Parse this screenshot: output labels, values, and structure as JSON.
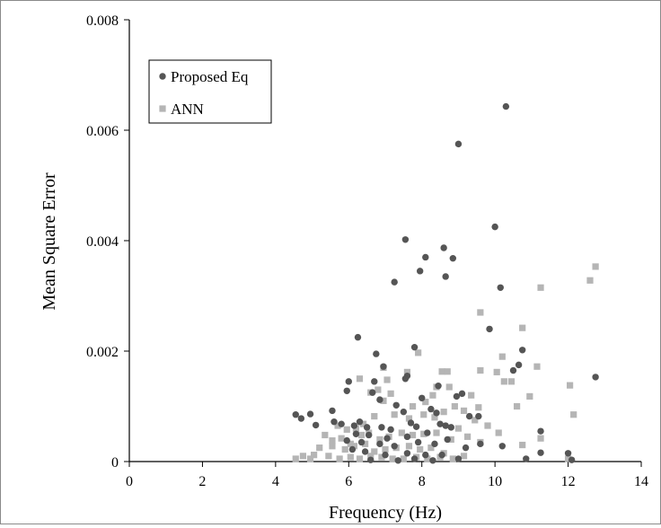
{
  "chart_data": {
    "type": "scatter",
    "xlabel": "Frequency (Hz)",
    "ylabel": "Mean Square Error",
    "xlim": [
      0,
      14
    ],
    "ylim": [
      0,
      0.008
    ],
    "xticks": [
      0,
      2,
      4,
      6,
      8,
      10,
      12,
      14
    ],
    "yticks": [
      0,
      0.002,
      0.004,
      0.006,
      0.008
    ],
    "xtick_labels": [
      "0",
      "2",
      "4",
      "6",
      "8",
      "10",
      "12",
      "14"
    ],
    "ytick_labels": [
      "0",
      "0.002",
      "0.004",
      "0.006",
      "0.008"
    ],
    "grid": false,
    "legend": "top-left",
    "series": [
      {
        "name": "Proposed Eq",
        "color": "#555555",
        "marker": "circle",
        "points": [
          [
            10.3,
            0.00643
          ],
          [
            9.0,
            0.00575
          ],
          [
            10.0,
            0.00425
          ],
          [
            7.55,
            0.00402
          ],
          [
            8.6,
            0.00387
          ],
          [
            8.1,
            0.0037
          ],
          [
            8.85,
            0.00368
          ],
          [
            7.95,
            0.00345
          ],
          [
            8.65,
            0.00335
          ],
          [
            7.25,
            0.00325
          ],
          [
            10.15,
            0.00315
          ],
          [
            9.85,
            0.0024
          ],
          [
            6.25,
            0.00225
          ],
          [
            10.75,
            0.00202
          ],
          [
            7.8,
            0.00207
          ],
          [
            6.75,
            0.00195
          ],
          [
            6.95,
            0.00172
          ],
          [
            10.65,
            0.00175
          ],
          [
            10.5,
            0.00165
          ],
          [
            7.55,
            0.0015
          ],
          [
            6.0,
            0.00145
          ],
          [
            12.75,
            0.00153
          ],
          [
            6.7,
            0.00145
          ],
          [
            7.6,
            0.00155
          ],
          [
            8.45,
            0.00137
          ],
          [
            5.95,
            0.00128
          ],
          [
            6.65,
            0.00125
          ],
          [
            9.1,
            0.00123
          ],
          [
            8.95,
            0.00118
          ],
          [
            8.0,
            0.00115
          ],
          [
            6.85,
            0.00112
          ],
          [
            7.3,
            0.00102
          ],
          [
            8.25,
            0.00095
          ],
          [
            8.4,
            0.00088
          ],
          [
            7.5,
            0.0009
          ],
          [
            4.55,
            0.00085
          ],
          [
            4.7,
            0.00078
          ],
          [
            4.95,
            0.00086
          ],
          [
            5.1,
            0.00066
          ],
          [
            5.55,
            0.00092
          ],
          [
            5.6,
            0.00072
          ],
          [
            5.8,
            0.00068
          ],
          [
            6.15,
            0.00065
          ],
          [
            6.3,
            0.00072
          ],
          [
            6.5,
            0.00062
          ],
          [
            6.9,
            0.00062
          ],
          [
            7.15,
            0.00058
          ],
          [
            7.7,
            0.0007
          ],
          [
            7.85,
            0.00063
          ],
          [
            8.5,
            0.00068
          ],
          [
            8.65,
            0.00065
          ],
          [
            8.8,
            0.00062
          ],
          [
            9.3,
            0.00082
          ],
          [
            9.55,
            0.00082
          ],
          [
            6.2,
            0.0005
          ],
          [
            6.55,
            0.00048
          ],
          [
            7.05,
            0.00042
          ],
          [
            7.6,
            0.00045
          ],
          [
            8.15,
            0.00052
          ],
          [
            5.95,
            0.00038
          ],
          [
            6.35,
            0.00035
          ],
          [
            6.85,
            0.00032
          ],
          [
            7.25,
            0.00028
          ],
          [
            7.9,
            0.00035
          ],
          [
            8.35,
            0.00032
          ],
          [
            8.7,
            0.0004
          ],
          [
            9.2,
            0.00025
          ],
          [
            9.6,
            0.00032
          ],
          [
            10.2,
            0.00028
          ],
          [
            11.25,
            0.00055
          ],
          [
            11.25,
            0.00016
          ],
          [
            6.1,
            0.00022
          ],
          [
            6.45,
            0.00018
          ],
          [
            7.0,
            0.00012
          ],
          [
            7.6,
            0.00015
          ],
          [
            8.1,
            0.00012
          ],
          [
            8.55,
            0.00012
          ],
          [
            9.0,
            5e-05
          ],
          [
            10.85,
            5e-05
          ],
          [
            12.0,
            0.00015
          ],
          [
            12.1,
            3e-05
          ],
          [
            6.6,
            3e-05
          ],
          [
            7.35,
            2e-05
          ],
          [
            8.3,
            2e-05
          ],
          [
            7.8,
            5e-05
          ]
        ]
      },
      {
        "name": "ANN",
        "color": "#b5b5b5",
        "marker": "square",
        "points": [
          [
            12.75,
            0.00353
          ],
          [
            12.6,
            0.00328
          ],
          [
            11.25,
            0.00315
          ],
          [
            9.6,
            0.0027
          ],
          [
            10.75,
            0.00242
          ],
          [
            7.9,
            0.00197
          ],
          [
            10.2,
            0.0019
          ],
          [
            9.6,
            0.00165
          ],
          [
            10.05,
            0.00162
          ],
          [
            11.15,
            0.00172
          ],
          [
            7.6,
            0.00162
          ],
          [
            8.55,
            0.00163
          ],
          [
            8.7,
            0.00163
          ],
          [
            6.95,
            0.0017
          ],
          [
            10.25,
            0.00145
          ],
          [
            10.45,
            0.00145
          ],
          [
            7.05,
            0.00148
          ],
          [
            6.8,
            0.0013
          ],
          [
            6.6,
            0.00125
          ],
          [
            12.05,
            0.00138
          ],
          [
            7.15,
            0.00123
          ],
          [
            8.3,
            0.0012
          ],
          [
            8.4,
            0.00135
          ],
          [
            8.75,
            0.00135
          ],
          [
            9.35,
            0.0012
          ],
          [
            10.6,
            0.001
          ],
          [
            10.95,
            0.00118
          ],
          [
            12.15,
            0.00085
          ],
          [
            6.3,
            0.0015
          ],
          [
            6.95,
            0.0011
          ],
          [
            7.75,
            0.001
          ],
          [
            8.1,
            0.00108
          ],
          [
            8.9,
            0.001
          ],
          [
            9.15,
            0.00092
          ],
          [
            9.45,
            0.00075
          ],
          [
            9.8,
            0.00065
          ],
          [
            5.7,
            0.00065
          ],
          [
            5.95,
            0.00058
          ],
          [
            6.2,
            0.0006
          ],
          [
            6.4,
            0.00068
          ],
          [
            6.7,
            0.00082
          ],
          [
            7.25,
            0.00085
          ],
          [
            7.65,
            0.00078
          ],
          [
            8.05,
            0.00085
          ],
          [
            8.35,
            0.0008
          ],
          [
            8.6,
            0.0009
          ],
          [
            9.0,
            0.0006
          ],
          [
            9.55,
            0.00098
          ],
          [
            5.35,
            0.00048
          ],
          [
            5.55,
            0.00038
          ],
          [
            5.8,
            0.00042
          ],
          [
            6.05,
            0.00032
          ],
          [
            6.35,
            0.00048
          ],
          [
            6.55,
            0.00052
          ],
          [
            6.85,
            0.0004
          ],
          [
            7.1,
            0.00045
          ],
          [
            7.45,
            0.00052
          ],
          [
            7.75,
            0.00048
          ],
          [
            8.05,
            0.0005
          ],
          [
            8.4,
            0.00052
          ],
          [
            8.8,
            0.0004
          ],
          [
            9.25,
            0.00045
          ],
          [
            5.2,
            0.00025
          ],
          [
            5.55,
            0.00028
          ],
          [
            5.9,
            0.00022
          ],
          [
            6.15,
            0.00028
          ],
          [
            6.45,
            0.00032
          ],
          [
            6.7,
            0.00018
          ],
          [
            7.0,
            0.00022
          ],
          [
            7.3,
            0.00025
          ],
          [
            7.65,
            0.00028
          ],
          [
            7.95,
            0.00022
          ],
          [
            8.25,
            0.00025
          ],
          [
            8.6,
            0.00015
          ],
          [
            9.6,
            0.00035
          ],
          [
            10.1,
            0.00052
          ],
          [
            10.75,
            0.0003
          ],
          [
            11.25,
            0.00042
          ],
          [
            4.55,
            5e-05
          ],
          [
            4.75,
            0.0001
          ],
          [
            4.95,
            5e-05
          ],
          [
            5.05,
            0.00012
          ],
          [
            5.45,
            0.0001
          ],
          [
            5.75,
            5e-05
          ],
          [
            6.05,
            8e-05
          ],
          [
            6.3,
            5e-05
          ],
          [
            6.6,
            0.0001
          ],
          [
            6.9,
            8e-05
          ],
          [
            7.2,
            5e-05
          ],
          [
            7.5,
            5e-05
          ],
          [
            7.85,
            8e-05
          ],
          [
            8.15,
            5e-05
          ],
          [
            8.5,
            8e-05
          ],
          [
            8.85,
            5e-05
          ],
          [
            9.15,
            0.0001
          ],
          [
            12.0,
            5e-05
          ]
        ]
      }
    ]
  }
}
